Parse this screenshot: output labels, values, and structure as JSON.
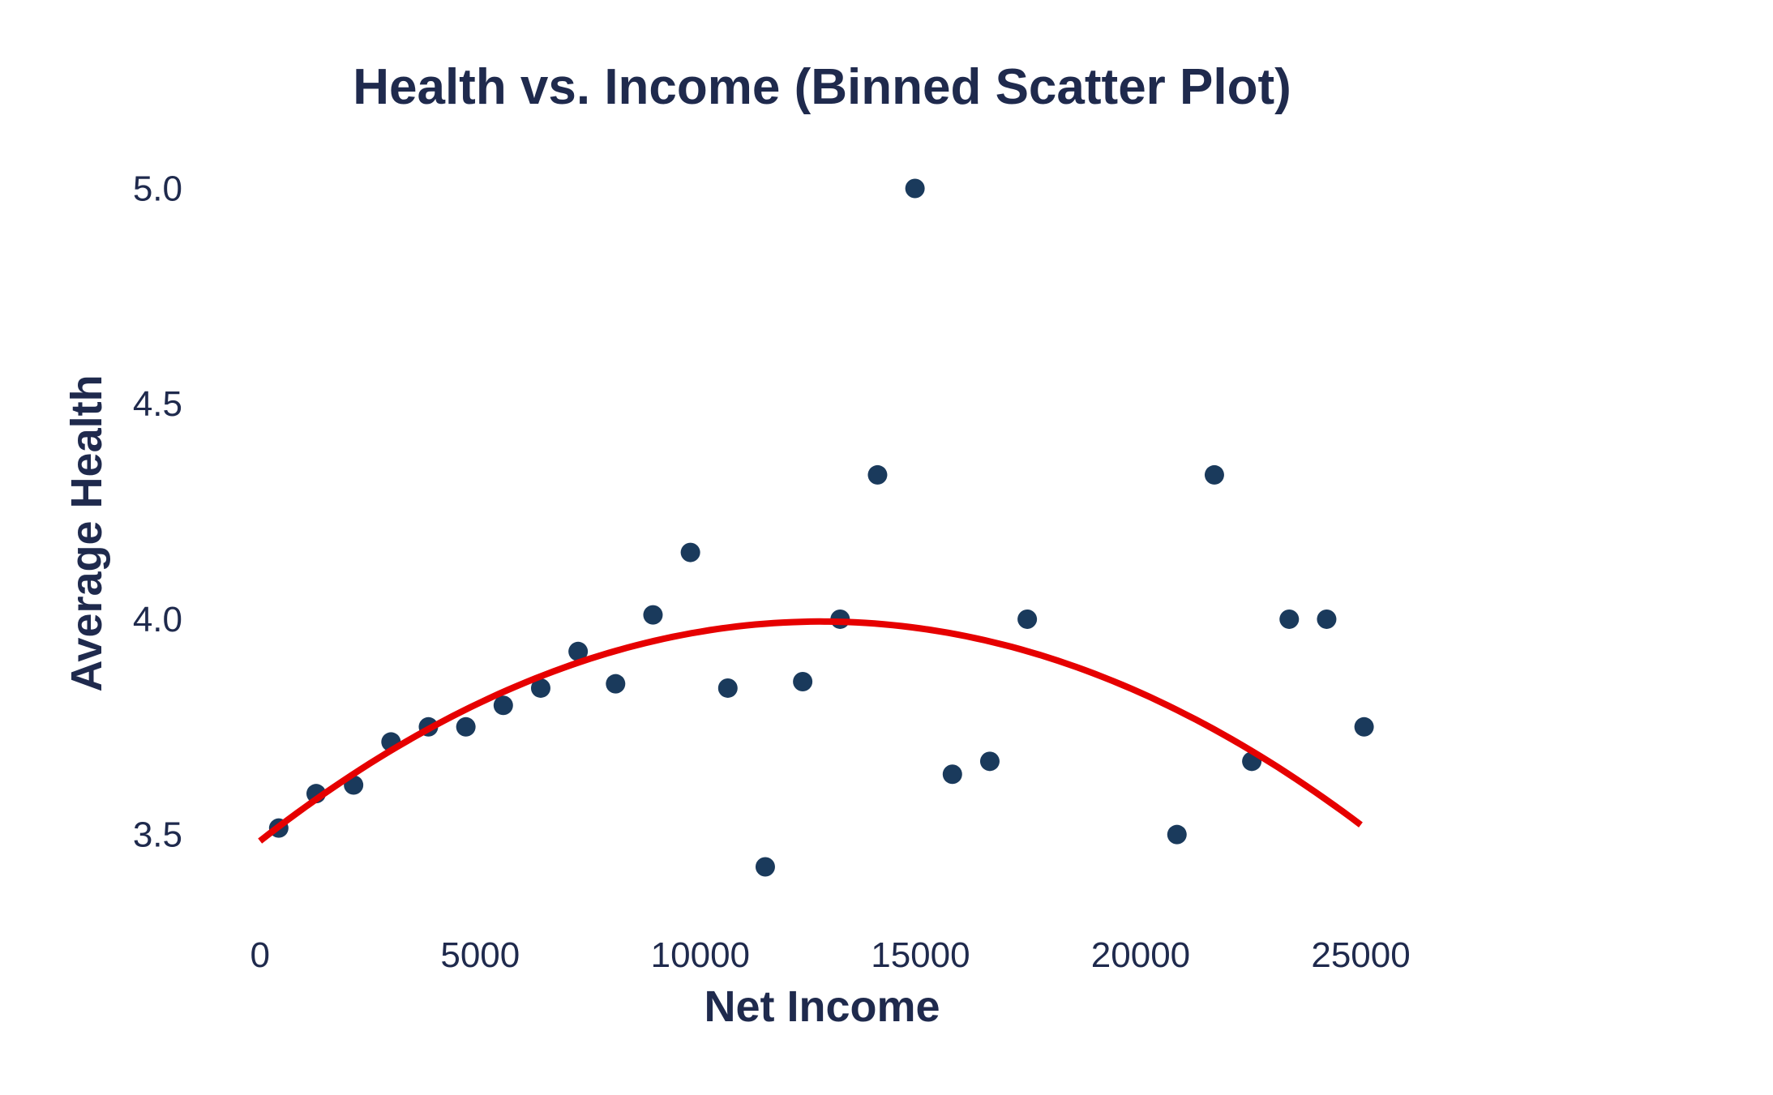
{
  "colors": {
    "text": "#1f2a4d",
    "points": "#1a3a5c",
    "fit_line": "#e60000"
  },
  "chart_data": {
    "type": "scatter",
    "title": "Health vs. Income (Binned Scatter Plot)",
    "xlabel": "Net Income",
    "ylabel": "Average Health",
    "xlim": [
      -750,
      26500
    ],
    "ylim": [
      3.33,
      5.08
    ],
    "xticks": [
      0,
      5000,
      10000,
      15000,
      20000,
      25000
    ],
    "xtick_labels": [
      "0",
      "5000",
      "10000",
      "15000",
      "20000",
      "25000"
    ],
    "yticks": [
      3.5,
      4.0,
      4.5,
      5.0
    ],
    "ytick_labels": [
      "3.5",
      "4.0",
      "4.5",
      "5.0"
    ],
    "grid": false,
    "series": [
      {
        "type": "scatter",
        "x": [
          425,
          1275,
          2125,
          2975,
          3825,
          4675,
          5525,
          6375,
          7225,
          8075,
          8925,
          9775,
          10625,
          11475,
          12325,
          13175,
          14025,
          14875,
          15725,
          16575,
          17425,
          20825,
          21675,
          22525,
          23375,
          24225,
          25075
        ],
        "y": [
          3.515,
          3.595,
          3.615,
          3.715,
          3.75,
          3.75,
          3.8,
          3.84,
          3.925,
          3.85,
          4.01,
          4.155,
          3.84,
          3.425,
          3.855,
          4.0,
          4.335,
          5.0,
          3.64,
          3.67,
          4.0,
          3.5,
          4.335,
          3.67,
          4.0,
          4.0,
          3.75
        ]
      },
      {
        "type": "line",
        "fit": "quadratic",
        "coefficients": [
          3.485,
          8e-05,
          -3.14e-09
        ],
        "x_range": [
          0,
          25000
        ]
      }
    ]
  }
}
